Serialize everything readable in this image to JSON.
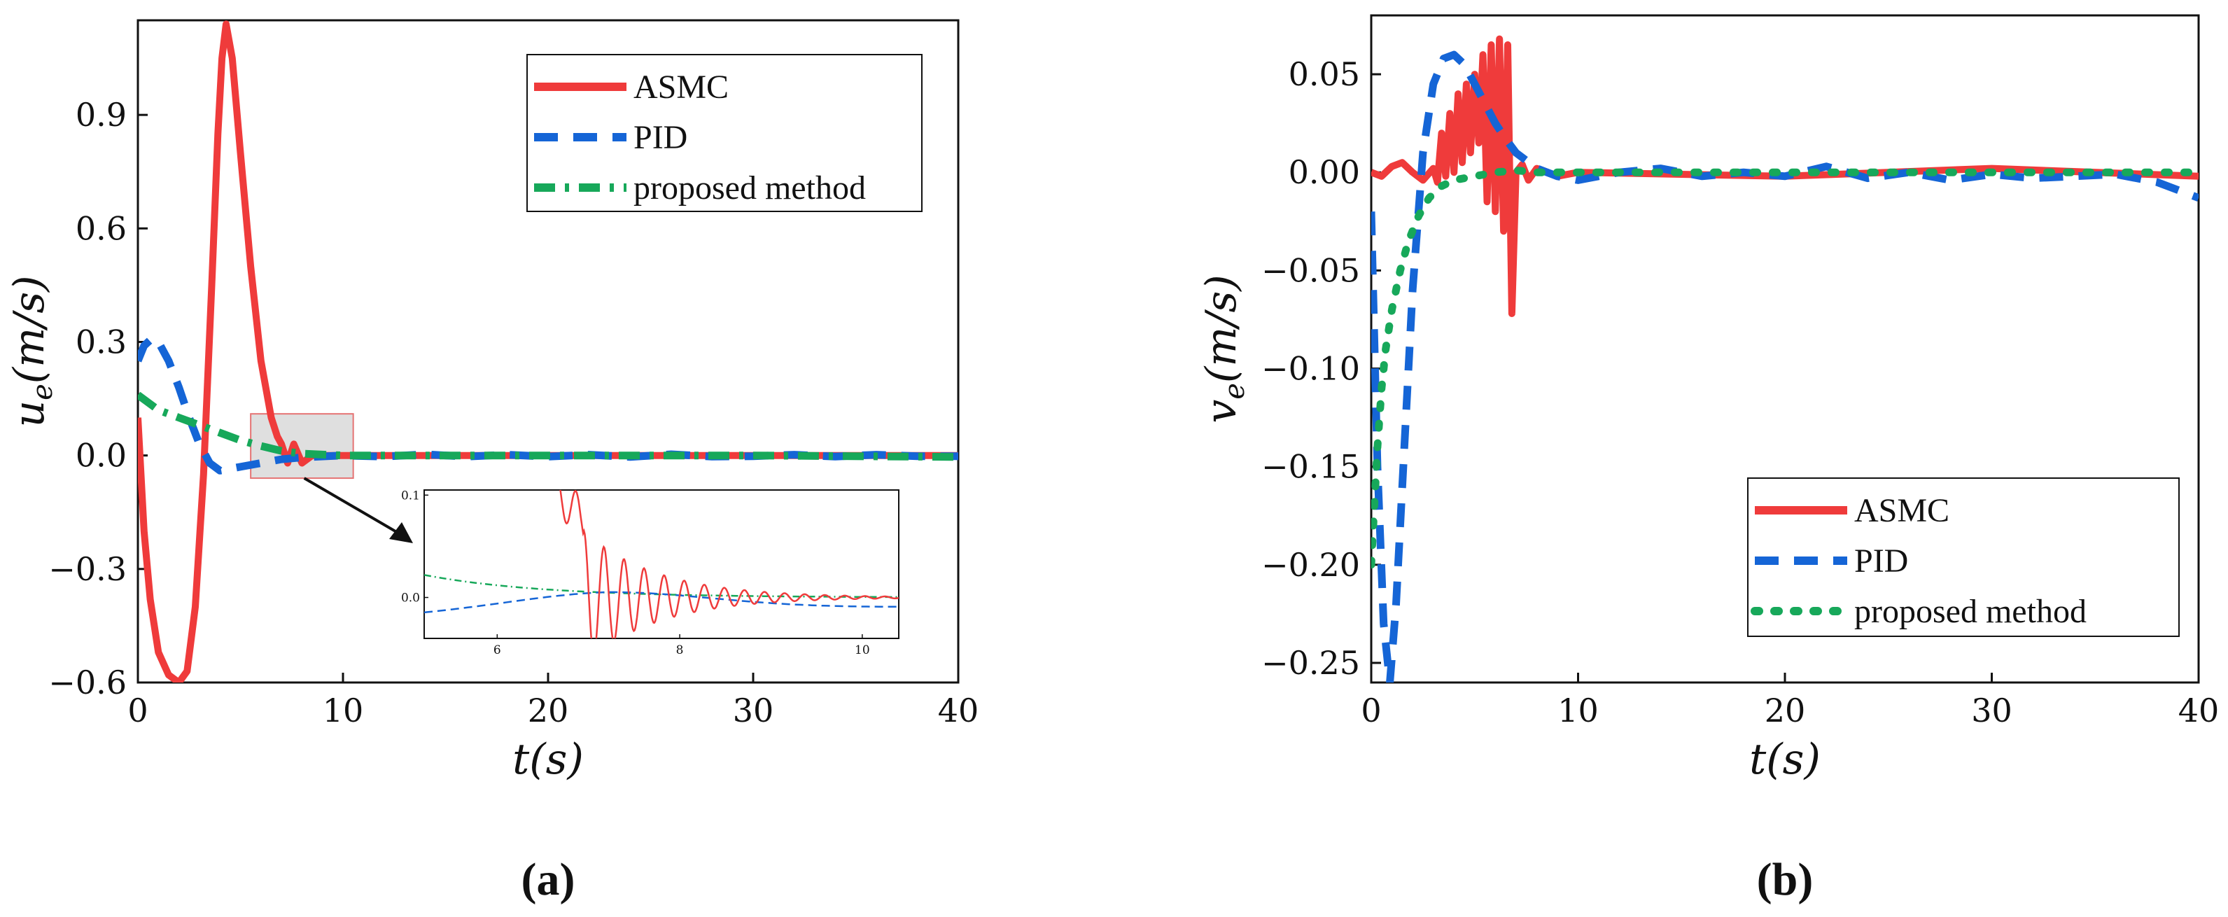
{
  "chart_data": [
    {
      "type": "line",
      "panel_label": "(a)",
      "xlabel": "t(s)",
      "ylabel": "u_e(m/s)",
      "xlim": [
        0,
        40
      ],
      "ylim": [
        -0.6,
        1.15
      ],
      "xticks": [
        0,
        10,
        20,
        30,
        40
      ],
      "yticks": [
        -0.6,
        -0.3,
        0.0,
        0.3,
        0.6,
        0.9
      ],
      "xtick_labels": [
        "0",
        "10",
        "20",
        "30",
        "40"
      ],
      "ytick_labels": [
        "−0.6",
        "−0.3",
        "0.0",
        "0.3",
        "0.6",
        "0.9"
      ],
      "legend": [
        "ASMC",
        "PID",
        "proposed method"
      ],
      "legend_position": "top-right",
      "series": [
        {
          "name": "ASMC",
          "color": "#ef3b3b",
          "style": "solid",
          "x": [
            0,
            0.3,
            0.6,
            1.0,
            1.5,
            2.0,
            2.4,
            2.8,
            3.2,
            3.6,
            3.9,
            4.1,
            4.3,
            4.6,
            5.0,
            5.5,
            6.0,
            6.5,
            6.8,
            7.0,
            7.3,
            7.6,
            8.0,
            8.5,
            10,
            20,
            30,
            40
          ],
          "y": [
            0.1,
            -0.2,
            -0.38,
            -0.52,
            -0.58,
            -0.6,
            -0.57,
            -0.4,
            -0.05,
            0.45,
            0.85,
            1.05,
            1.14,
            1.05,
            0.8,
            0.5,
            0.25,
            0.1,
            0.05,
            0.03,
            -0.02,
            0.03,
            -0.02,
            0.0,
            0.0,
            0.0,
            0.0,
            0.0
          ]
        },
        {
          "name": "PID",
          "color": "#1565d6",
          "style": "dashed",
          "x": [
            0,
            0.3,
            0.7,
            1.0,
            1.5,
            2.0,
            2.5,
            3.0,
            3.5,
            4.0,
            5.0,
            6.0,
            7.0,
            8.0,
            10,
            12,
            14,
            16,
            18,
            20,
            22,
            24,
            26,
            28,
            30,
            32,
            34,
            36,
            38,
            40
          ],
          "y": [
            0.25,
            0.29,
            0.31,
            0.3,
            0.25,
            0.18,
            0.1,
            0.03,
            -0.02,
            -0.04,
            -0.03,
            -0.02,
            -0.01,
            -0.005,
            0.0,
            -0.003,
            0.003,
            -0.003,
            0.002,
            -0.003,
            0.002,
            -0.004,
            0.003,
            -0.003,
            -0.002,
            0.002,
            -0.003,
            0.002,
            -0.002,
            -0.002
          ]
        },
        {
          "name": "proposed method",
          "color": "#17a85a",
          "style": "dashdot",
          "x": [
            0,
            0.5,
            1,
            2,
            3,
            4,
            5,
            6,
            7,
            8,
            10,
            20,
            30,
            40
          ],
          "y": [
            0.16,
            0.14,
            0.12,
            0.1,
            0.08,
            0.06,
            0.04,
            0.025,
            0.012,
            0.005,
            0.0,
            0.0,
            0.0,
            -0.004
          ]
        }
      ],
      "inset": {
        "xlim": [
          5.2,
          10.4
        ],
        "ylim": [
          -0.04,
          0.105
        ],
        "xticks": [
          6,
          8,
          10
        ],
        "yticks": [
          0.0,
          0.1
        ],
        "xtick_labels": [
          "6",
          "8",
          "10"
        ],
        "ytick_labels": [
          "0.0",
          "0.1"
        ],
        "highlight_x": [
          5.5,
          10.5
        ],
        "highlight_y": [
          -0.06,
          0.11
        ]
      }
    },
    {
      "type": "line",
      "panel_label": "(b)",
      "xlabel": "t(s)",
      "ylabel": "v_e(m/s)",
      "xlim": [
        0,
        40
      ],
      "ylim": [
        -0.26,
        0.08
      ],
      "xticks": [
        0,
        10,
        20,
        30,
        40
      ],
      "yticks": [
        -0.25,
        -0.2,
        -0.15,
        -0.1,
        -0.05,
        0.0,
        0.05
      ],
      "xtick_labels": [
        "0",
        "10",
        "20",
        "30",
        "40"
      ],
      "ytick_labels": [
        "−0.25",
        "−0.20",
        "−0.15",
        "−0.10",
        "−0.05",
        "0.00",
        "0.05"
      ],
      "legend": [
        "ASMC",
        "PID",
        "proposed method"
      ],
      "legend_position": "lower-right",
      "series": [
        {
          "name": "ASMC",
          "color": "#ef3b3b",
          "style": "solid",
          "x": [
            0,
            0.5,
            1.0,
            1.5,
            2.0,
            2.5,
            3.0,
            3.2,
            3.4,
            3.6,
            3.8,
            4.0,
            4.2,
            4.4,
            4.6,
            4.8,
            5.0,
            5.2,
            5.4,
            5.6,
            5.8,
            6.0,
            6.2,
            6.4,
            6.6,
            6.8,
            7.0,
            7.3,
            7.6,
            8.0,
            9,
            10,
            20,
            30,
            40
          ],
          "y": [
            0.0,
            -0.002,
            0.003,
            0.005,
            0.0,
            -0.004,
            0.002,
            -0.005,
            0.02,
            -0.002,
            0.03,
            0.0,
            0.04,
            0.005,
            0.045,
            0.01,
            0.05,
            0.015,
            0.06,
            -0.015,
            0.065,
            -0.02,
            0.068,
            -0.03,
            0.065,
            -0.072,
            0.0,
            0.004,
            -0.004,
            0.002,
            -0.002,
            0.0,
            -0.002,
            0.002,
            -0.002
          ]
        },
        {
          "name": "PID",
          "color": "#1565d6",
          "style": "dashed",
          "x": [
            0,
            0.3,
            0.6,
            0.9,
            1.2,
            1.6,
            2.0,
            2.5,
            3.0,
            3.5,
            4.0,
            4.5,
            5.0,
            5.5,
            6.0,
            6.5,
            7.0,
            8.0,
            9.0,
            10.0,
            12,
            14,
            16,
            18,
            20,
            22,
            24,
            26,
            28,
            30,
            32,
            34,
            36,
            38,
            40
          ],
          "y": [
            -0.02,
            -0.15,
            -0.23,
            -0.26,
            -0.22,
            -0.14,
            -0.06,
            0.01,
            0.045,
            0.058,
            0.06,
            0.055,
            0.045,
            0.035,
            0.025,
            0.017,
            0.01,
            0.002,
            -0.002,
            -0.004,
            0.0,
            0.002,
            -0.002,
            0.0,
            -0.002,
            0.003,
            -0.003,
            0.0,
            -0.004,
            -0.001,
            -0.003,
            -0.002,
            -0.001,
            -0.005,
            -0.013
          ]
        },
        {
          "name": "proposed method",
          "color": "#17a85a",
          "style": "dotted",
          "x": [
            0,
            0.15,
            0.3,
            0.5,
            0.7,
            1.0,
            1.4,
            1.8,
            2.3,
            2.8,
            3.4,
            4.0,
            5.0,
            6.0,
            7.0,
            8.0,
            10,
            20,
            30,
            40
          ],
          "y": [
            -0.2,
            -0.17,
            -0.14,
            -0.11,
            -0.09,
            -0.07,
            -0.05,
            -0.035,
            -0.022,
            -0.013,
            -0.007,
            -0.004,
            -0.002,
            0.0,
            0.001,
            0.0,
            0.0,
            0.0,
            0.0,
            0.0
          ]
        }
      ]
    }
  ]
}
